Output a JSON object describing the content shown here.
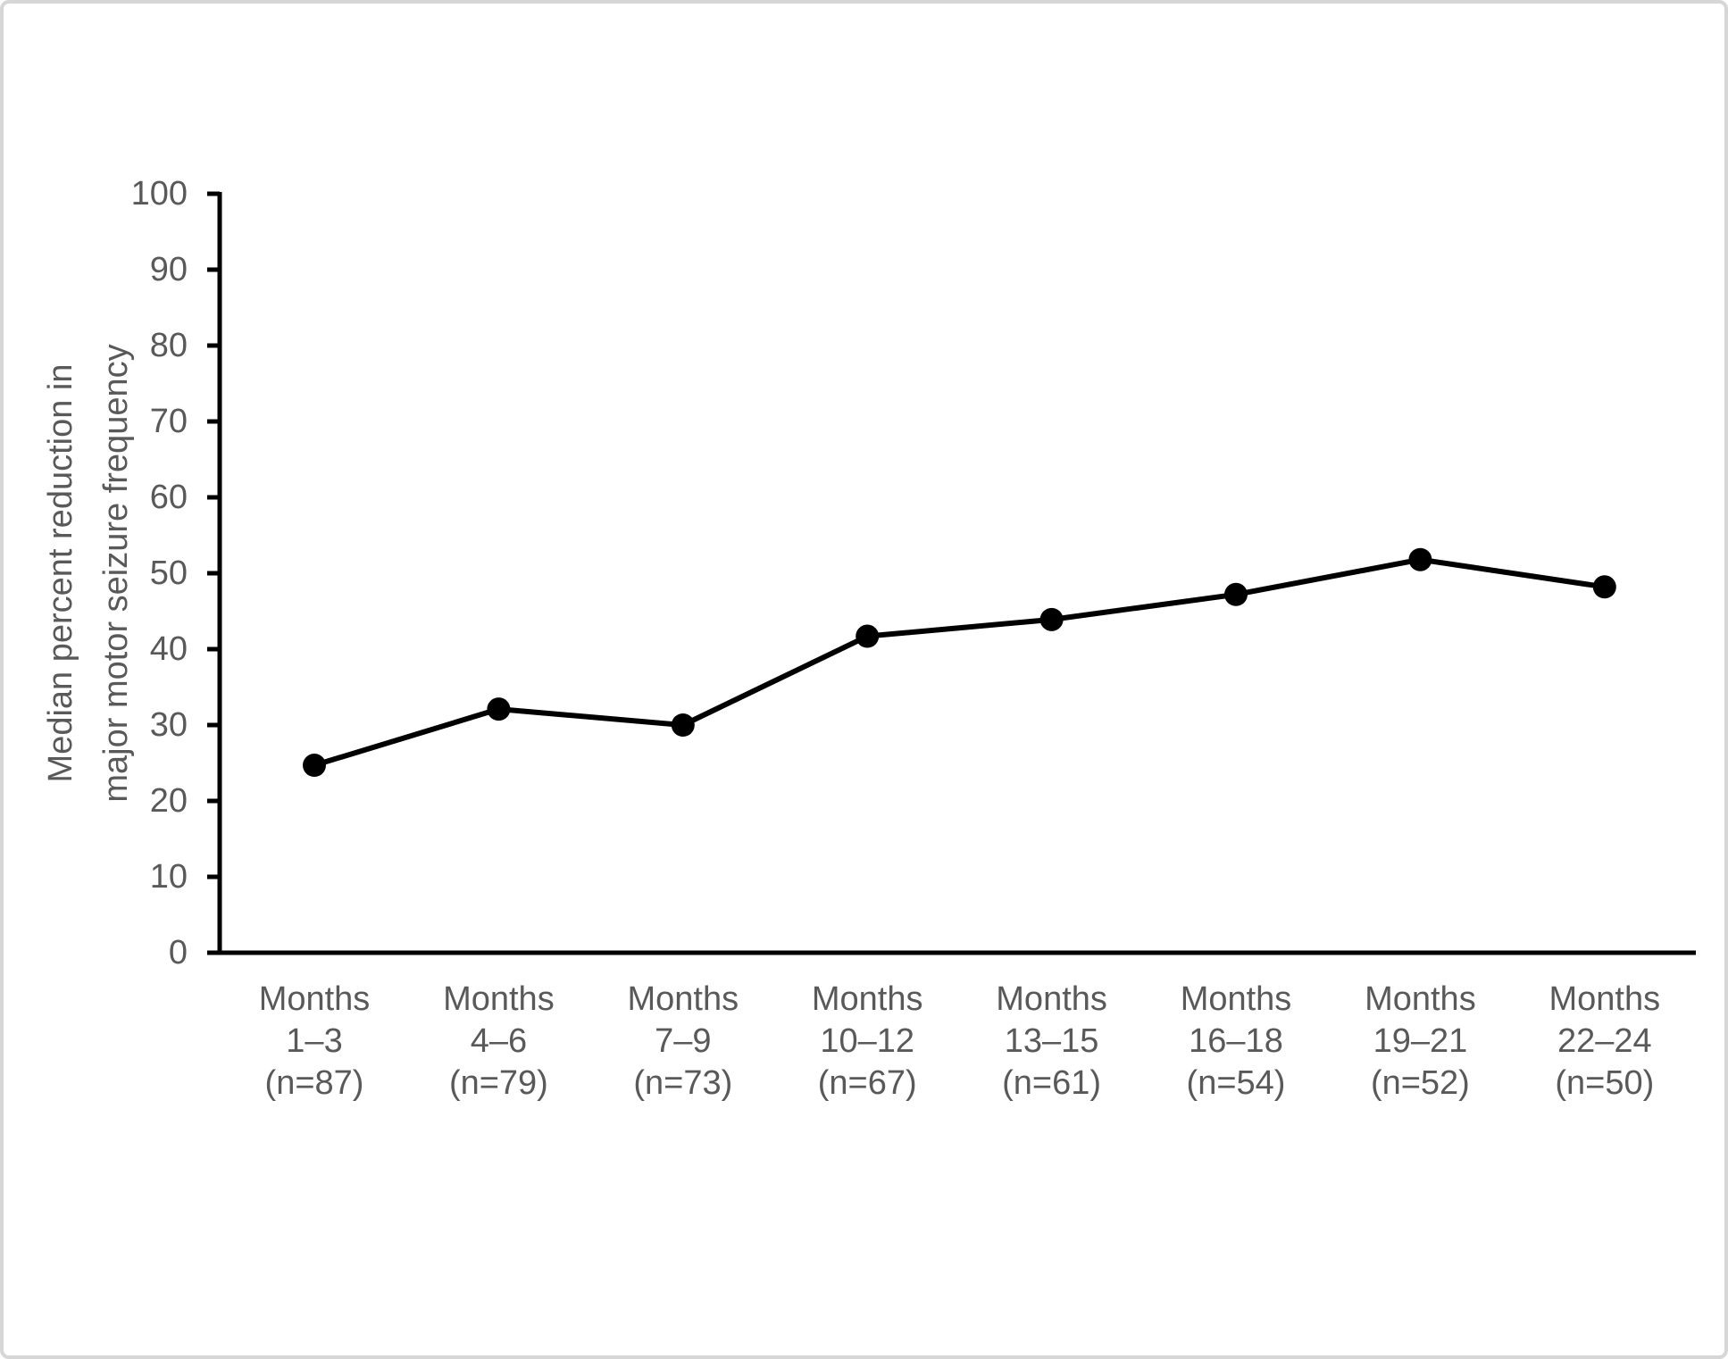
{
  "figure": {
    "background_color": "#ffffff",
    "frame_color": "#d6d6d6",
    "text_color": "#595959",
    "line_color": "#000000",
    "axis_color": "#000000"
  },
  "chart_data": {
    "type": "line",
    "title": "",
    "xlabel": "",
    "ylabel_lines": [
      "Median percent reduction in",
      "major motor seizure frequency"
    ],
    "categories": [
      [
        "Months",
        "1–3",
        "(n=87)"
      ],
      [
        "Months",
        "4–6",
        "(n=79)"
      ],
      [
        "Months",
        "7–9",
        "(n=73)"
      ],
      [
        "Months",
        "10–12",
        "(n=67)"
      ],
      [
        "Months",
        "13–15",
        "(n=61)"
      ],
      [
        "Months",
        "16–18",
        "(n=54)"
      ],
      [
        "Months",
        "19–21",
        "(n=52)"
      ],
      [
        "Months",
        "22–24",
        "(n=50)"
      ]
    ],
    "series": [
      {
        "name": "Median percent reduction in major motor seizure frequency",
        "values": [
          24.7,
          32.1,
          30.0,
          41.7,
          43.9,
          47.2,
          51.8,
          48.2
        ]
      }
    ],
    "ylim": [
      0,
      100
    ],
    "yticks": [
      0,
      10,
      20,
      30,
      40,
      50,
      60,
      70,
      80,
      90,
      100
    ],
    "grid": false,
    "legend_position": "none",
    "marker": "circle"
  }
}
